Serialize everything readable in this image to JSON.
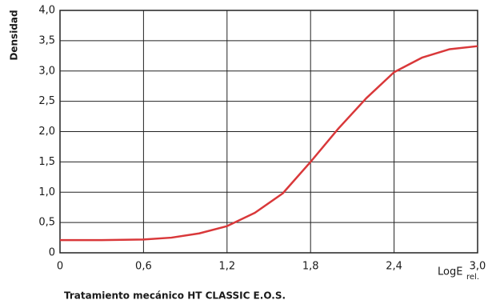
{
  "chart_data": {
    "type": "line",
    "caption": "Tratamiento mecánico HT CLASSIC E.O.S.",
    "y_label": "Densidad",
    "x_label": "LogE",
    "x_label_sub": "rel.",
    "x": [
      0,
      0.3,
      0.6,
      0.8,
      1.0,
      1.2,
      1.4,
      1.6,
      1.8,
      2.0,
      2.2,
      2.4,
      2.6,
      2.8,
      3.0
    ],
    "series": [
      {
        "color": "#d9383a",
        "values": [
          0.21,
          0.21,
          0.22,
          0.25,
          0.32,
          0.44,
          0.66,
          0.98,
          1.5,
          2.05,
          2.55,
          2.98,
          3.22,
          3.36,
          3.41
        ]
      }
    ],
    "xlim": [
      0,
      3.0
    ],
    "xticks": [
      0,
      {
        "value": 0.6,
        "label": "0,6"
      },
      {
        "value": 1.2,
        "label": "1,2"
      },
      {
        "value": 1.8,
        "label": "1,8"
      },
      {
        "value": 2.4,
        "label": "2,4"
      },
      {
        "value": 3.0,
        "label": "3,0"
      }
    ],
    "ylim": [
      0,
      4.0
    ],
    "yticks": [
      0,
      {
        "value": 0.5,
        "label": "0,5"
      },
      {
        "value": 1.0,
        "label": "1,0"
      },
      {
        "value": 1.5,
        "label": "1,5"
      },
      {
        "value": 2.0,
        "label": "2,0"
      },
      {
        "value": 2.5,
        "label": "2,5"
      },
      {
        "value": 3.0,
        "label": "3,0"
      },
      {
        "value": 3.5,
        "label": "3,5"
      },
      {
        "value": 4.0,
        "label": "4,0"
      }
    ],
    "grid": true
  }
}
